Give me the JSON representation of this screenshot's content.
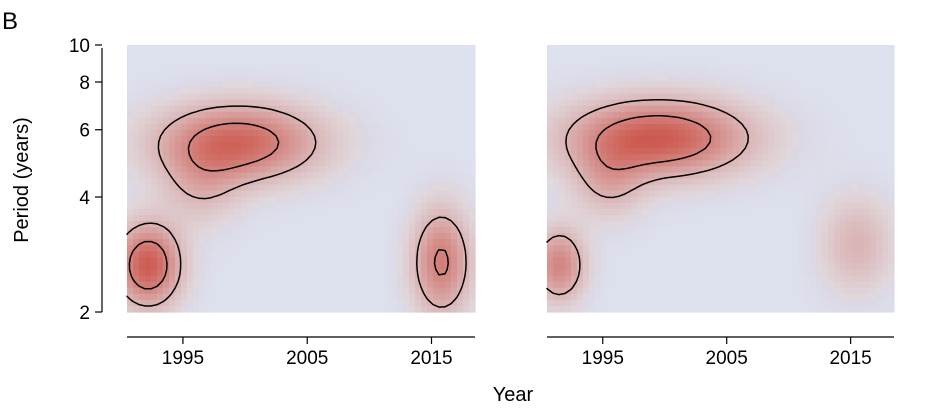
{
  "figure": {
    "panel_label": "B"
  },
  "chart_data": {
    "type": "heatmap",
    "ylabel": "Period (years)",
    "xlabel": "Year",
    "y_scale": "log",
    "ylim": [
      2,
      10
    ],
    "y_ticks": [
      {
        "value": 2,
        "label": "2"
      },
      {
        "value": 4,
        "label": "4"
      },
      {
        "value": 6,
        "label": "6"
      },
      {
        "value": 8,
        "label": "8"
      },
      {
        "value": 10,
        "label": "10"
      }
    ],
    "x_ticks": [
      {
        "value": 1995,
        "label": "1995"
      },
      {
        "value": 2005,
        "label": "2005"
      },
      {
        "value": 2015,
        "label": "2015"
      }
    ],
    "colors": {
      "background": "#e2e4ea",
      "low": "#dde1ee",
      "high": "#cd5a50",
      "contour": "#000000"
    },
    "panels": [
      {
        "xlim": [
          1990.5,
          2018.5
        ],
        "hotspots": [
          {
            "x": 1999.5,
            "y": 5.55,
            "sx": 4.5,
            "sy": 0.16,
            "amp": 0.9
          },
          {
            "x": 1992.2,
            "y": 2.65,
            "sx": 1.8,
            "sy": 0.17,
            "amp": 1.0
          },
          {
            "x": 2015.8,
            "y": 2.7,
            "sx": 1.6,
            "sy": 0.22,
            "amp": 0.75
          },
          {
            "x": 1996.5,
            "y": 4.3,
            "sx": 2.2,
            "sy": 0.17,
            "amp": 0.3
          }
        ]
      },
      {
        "xlim": [
          1990.5,
          2018.5
        ],
        "hotspots": [
          {
            "x": 1999.5,
            "y": 5.7,
            "sx": 5.0,
            "sy": 0.16,
            "amp": 1.0
          },
          {
            "x": 1991.5,
            "y": 2.65,
            "sx": 1.4,
            "sy": 0.15,
            "amp": 0.7
          },
          {
            "x": 2015.5,
            "y": 3.0,
            "sx": 2.0,
            "sy": 0.2,
            "amp": 0.35
          },
          {
            "x": 1995.5,
            "y": 4.4,
            "sx": 2.0,
            "sy": 0.16,
            "amp": 0.35
          }
        ]
      }
    ]
  }
}
